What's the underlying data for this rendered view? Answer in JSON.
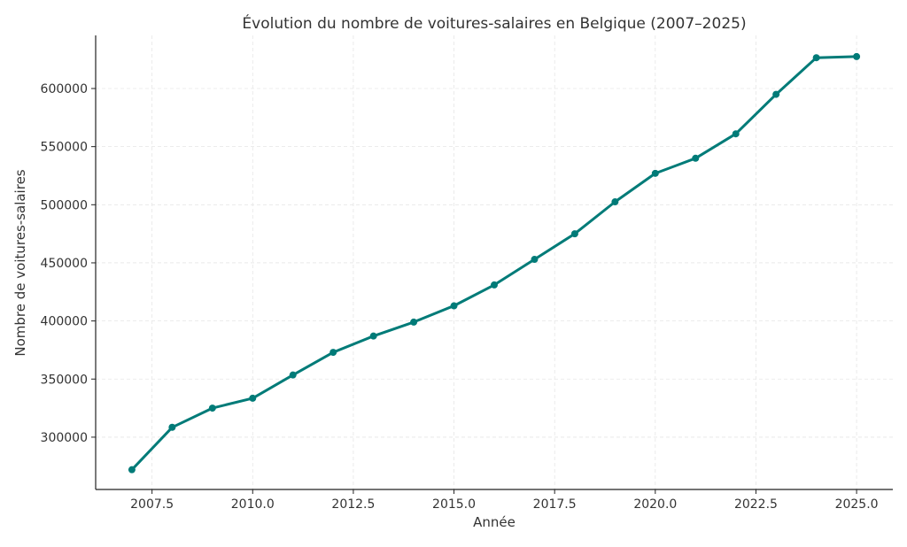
{
  "chart_data": {
    "type": "line",
    "title": "Évolution du nombre de voitures-salaires en Belgique (2007–2025)",
    "xlabel": "Année",
    "ylabel": "Nombre de voitures-salaires",
    "x": [
      2007,
      2008,
      2009,
      2010,
      2011,
      2012,
      2013,
      2014,
      2015,
      2016,
      2017,
      2018,
      2019,
      2020,
      2021,
      2022,
      2023,
      2024,
      2025
    ],
    "series": [
      {
        "name": "Voitures-salaires",
        "color": "#007b78",
        "values": [
          272000,
          308500,
          325000,
          333500,
          353500,
          373000,
          387000,
          399000,
          413000,
          431000,
          453000,
          475000,
          502500,
          527000,
          540000,
          561000,
          595000,
          626500,
          627500
        ]
      }
    ],
    "xticks": [
      2007.5,
      2010.0,
      2012.5,
      2015.0,
      2017.5,
      2020.0,
      2022.5,
      2025.0
    ],
    "xtick_labels": [
      "2007.5",
      "2010.0",
      "2012.5",
      "2015.0",
      "2017.5",
      "2020.0",
      "2022.5",
      "2025.0"
    ],
    "yticks": [
      300000,
      350000,
      400000,
      450000,
      500000,
      550000,
      600000
    ],
    "ytick_labels": [
      "300000",
      "350000",
      "400000",
      "450000",
      "500000",
      "550000",
      "600000"
    ],
    "xlim": [
      2006.1,
      2025.9
    ],
    "ylim": [
      255000,
      645700
    ],
    "grid": true,
    "legend": "none"
  }
}
